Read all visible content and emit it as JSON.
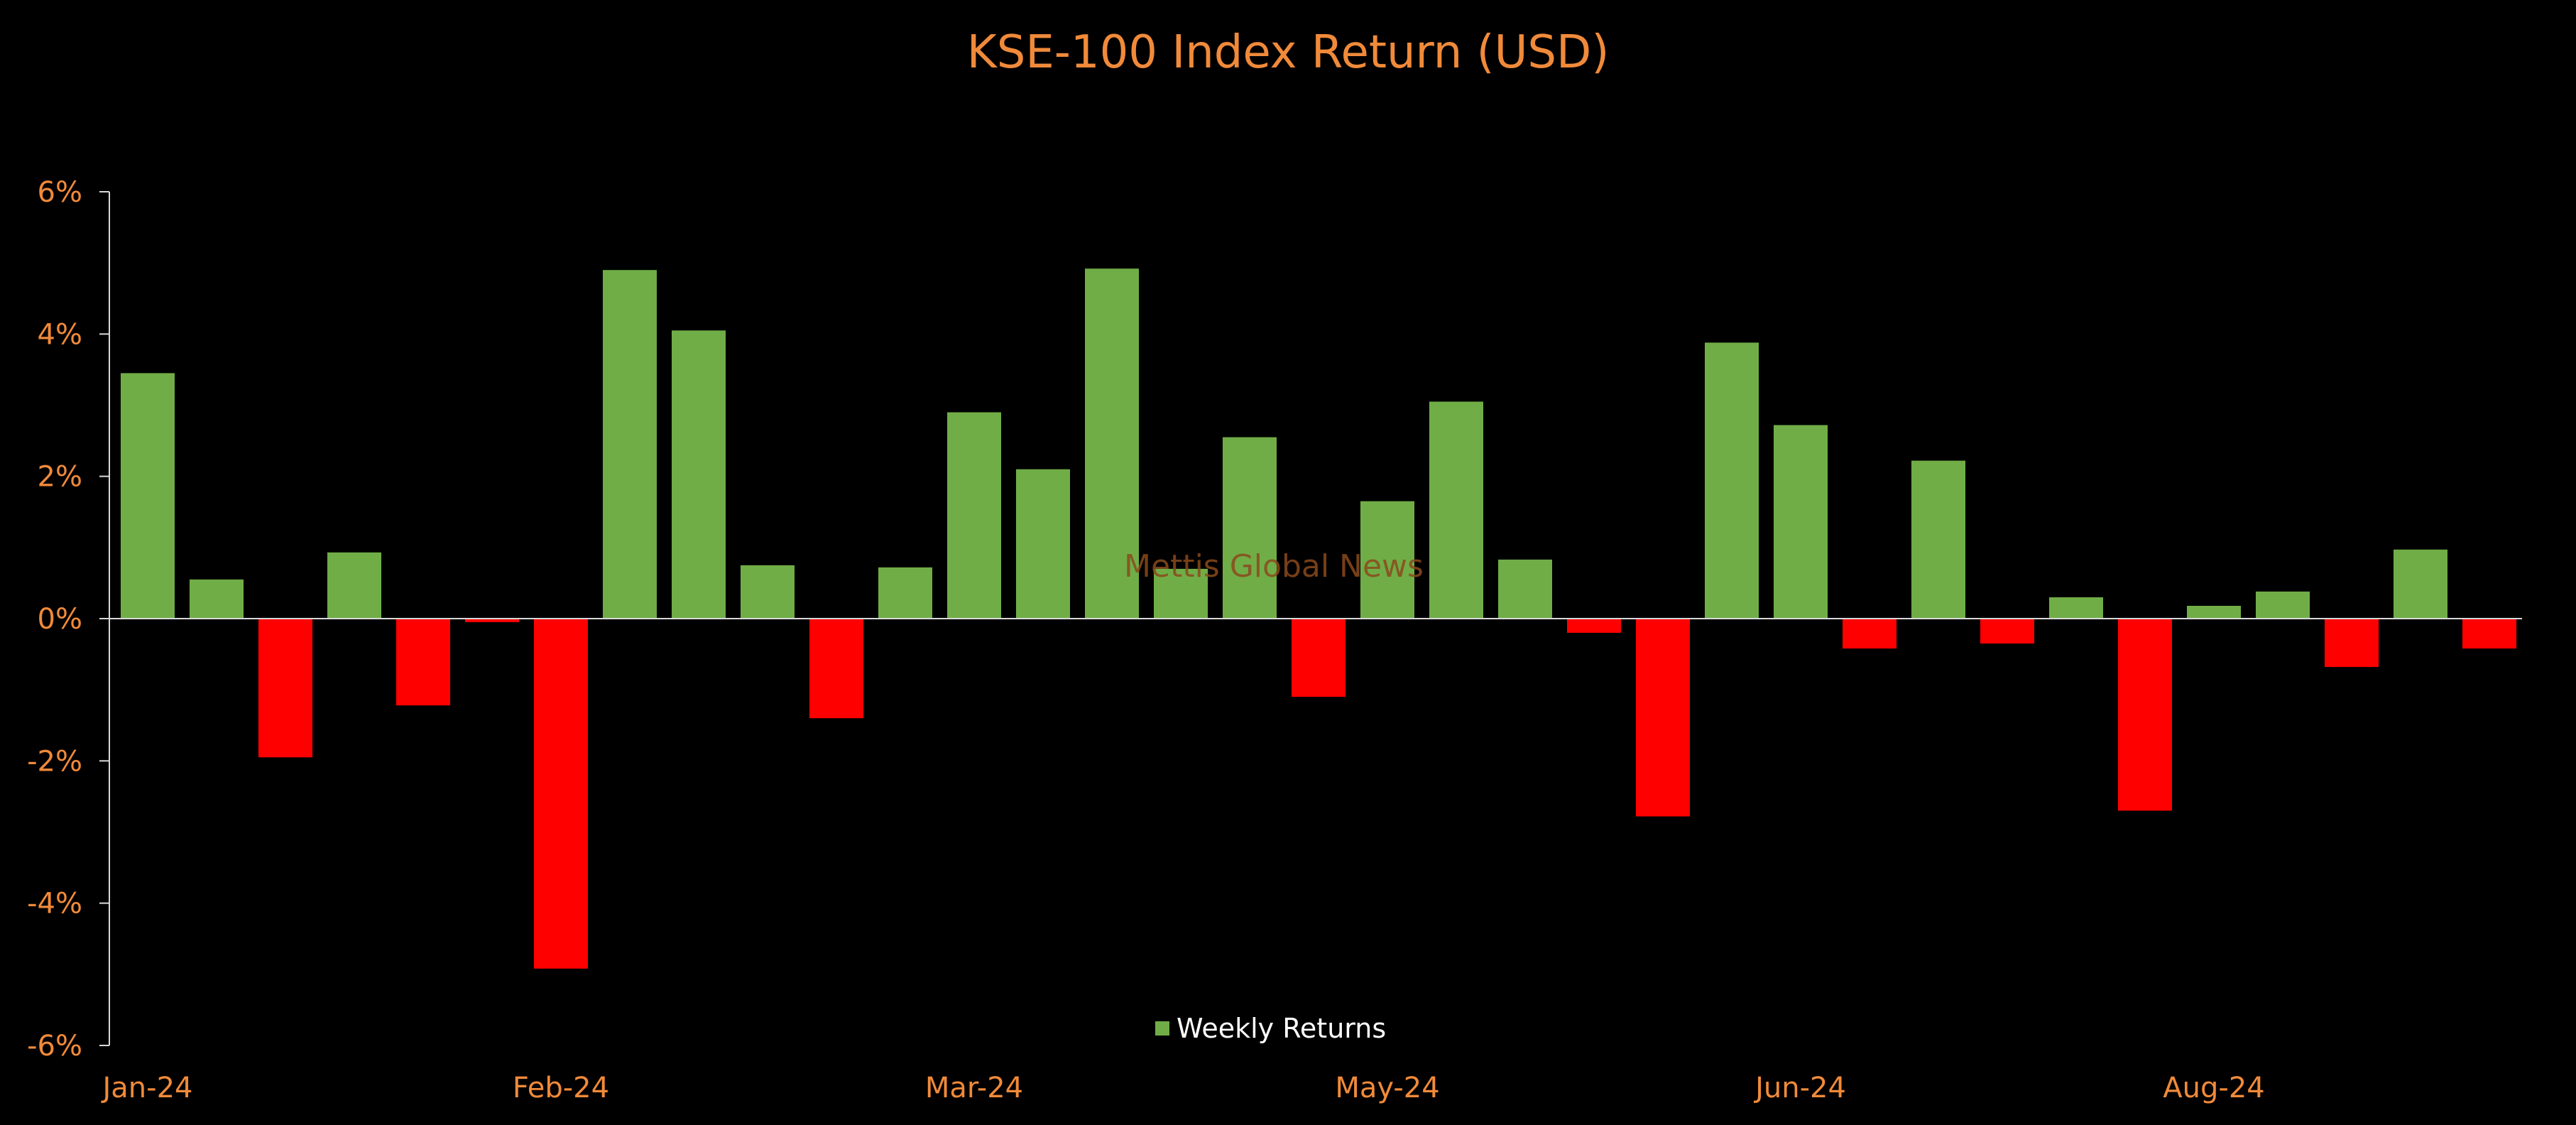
{
  "chart_data": {
    "type": "bar",
    "title": "KSE-100 Index Return (USD)",
    "xlabel": "",
    "ylabel": "",
    "ylim": [
      -6,
      6
    ],
    "y_ticks": [
      6,
      4,
      2,
      0,
      -2,
      -4,
      -6
    ],
    "y_tick_labels": [
      "6%",
      "4%",
      "2%",
      "0%",
      "-2%",
      "-4%",
      "-6%"
    ],
    "x_tick_labels": [
      "Jan-24",
      "Feb-24",
      "Mar-24",
      "May-24",
      "Jun-24",
      "Aug-24"
    ],
    "x_tick_positions": [
      0,
      6,
      12,
      18,
      24,
      30
    ],
    "grid": false,
    "legend": {
      "position": "bottom-center",
      "entries": [
        "Weekly Returns"
      ]
    },
    "watermark": "Mettis Global News",
    "series": [
      {
        "name": "Weekly Returns",
        "values": [
          3.45,
          0.55,
          -1.95,
          0.93,
          -1.22,
          -0.05,
          -4.92,
          4.9,
          4.05,
          0.75,
          -1.4,
          0.72,
          2.9,
          2.1,
          4.92,
          0.7,
          2.55,
          -1.1,
          1.65,
          3.05,
          0.83,
          -0.2,
          -2.78,
          3.88,
          2.72,
          -0.42,
          2.22,
          -0.35,
          0.3,
          -2.7,
          0.18,
          0.38,
          -0.68,
          0.97,
          -0.42
        ]
      }
    ],
    "colors": {
      "positive": "#70AD47",
      "negative": "#FF0000",
      "axis": "#D9D9D9",
      "text": "#F08A3A",
      "legend_text": "#FFFFFF",
      "background": "#000000"
    }
  }
}
